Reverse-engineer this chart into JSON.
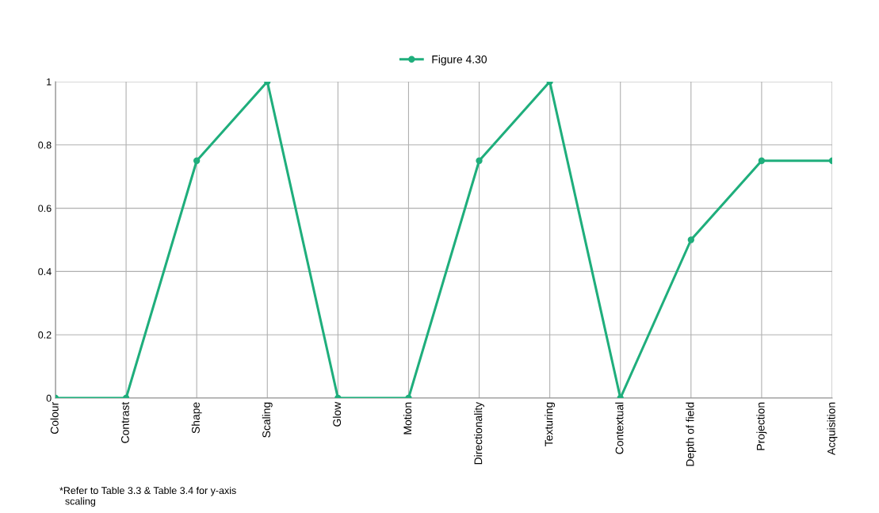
{
  "chart_data": {
    "type": "line",
    "categories": [
      "Colour",
      "Contrast",
      "Shape",
      "Scaling",
      "Glow",
      "Motion",
      "Directionality",
      "Texturing",
      "Contextual",
      "Depth of field",
      "Projection",
      "Acquisition"
    ],
    "series": [
      {
        "name": "Figure 4.30",
        "color": "#1fae7c",
        "values": [
          0,
          0,
          0.75,
          1,
          0,
          0,
          0.75,
          1,
          0,
          0.5,
          0.75,
          0.75
        ]
      }
    ],
    "ylim": [
      0,
      1
    ],
    "yticks": [
      0,
      0.2,
      0.4,
      0.6,
      0.8,
      1
    ],
    "grid": true,
    "legend": "top",
    "marker": "circle",
    "line_style": "solid",
    "annotations": [
      "*Refer to Table 3.3 & Table 3.4 for y-axis\n  scaling"
    ]
  }
}
